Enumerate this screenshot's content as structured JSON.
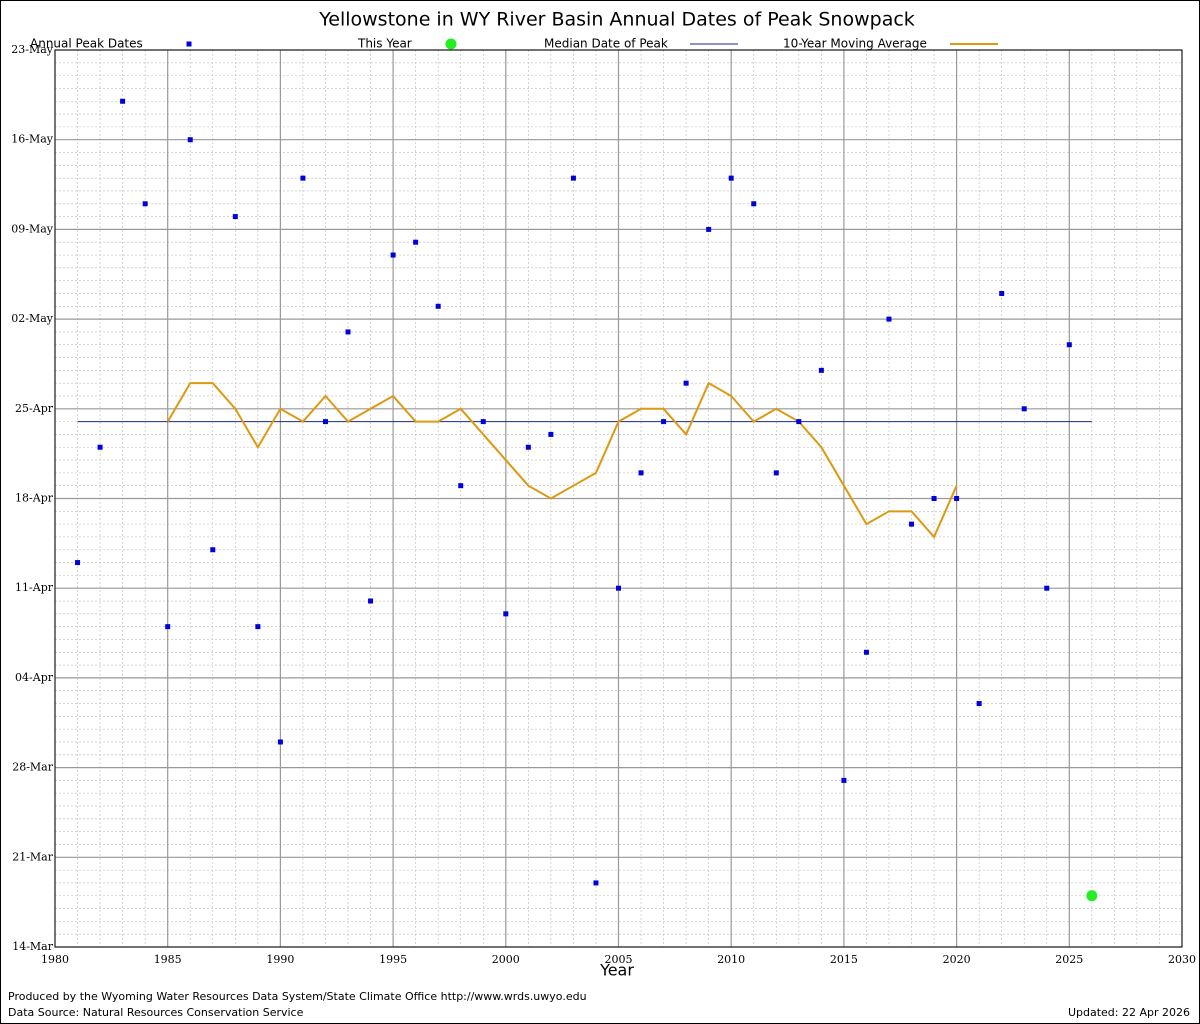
{
  "chart_data": {
    "type": "scatter",
    "title": "Yellowstone in WY River Basin Annual Dates of Peak Snowpack",
    "x_label": "Year",
    "footer_left": [
      "Produced by the Wyoming Water Resources Data System/State Climate Office http://www.wrds.uwyo.edu",
      "Data Source: Natural Resources Conservation Service"
    ],
    "footer_right": "Updated: 22 Apr 2026",
    "xlim": [
      1980,
      2030
    ],
    "xticks": [
      1980,
      1985,
      1990,
      1995,
      2000,
      2005,
      2010,
      2015,
      2020,
      2025,
      2030
    ],
    "ylim": [
      73,
      143
    ],
    "yticks": [
      {
        "value": 73,
        "label": "14-Mar"
      },
      {
        "value": 80,
        "label": "21-Mar"
      },
      {
        "value": 87,
        "label": "28-Mar"
      },
      {
        "value": 94,
        "label": "04-Apr"
      },
      {
        "value": 101,
        "label": "11-Apr"
      },
      {
        "value": 108,
        "label": "18-Apr"
      },
      {
        "value": 115,
        "label": "25-Apr"
      },
      {
        "value": 122,
        "label": "02-May"
      },
      {
        "value": 129,
        "label": "09-May"
      },
      {
        "value": 136,
        "label": "16-May"
      },
      {
        "value": 143,
        "label": "23-May"
      }
    ],
    "grid": true,
    "minor_grid": true,
    "series": [
      {
        "name": "Annual Peak Dates",
        "style": "marker",
        "color": "#0000dd",
        "x": [
          1981,
          1982,
          1983,
          1984,
          1985,
          1986,
          1987,
          1988,
          1989,
          1990,
          1991,
          1992,
          1993,
          1994,
          1995,
          1996,
          1997,
          1998,
          1999,
          2000,
          2001,
          2002,
          2003,
          2004,
          2005,
          2006,
          2007,
          2008,
          2009,
          2010,
          2011,
          2012,
          2013,
          2014,
          2015,
          2016,
          2017,
          2018,
          2019,
          2020,
          2021,
          2022,
          2023,
          2024,
          2025
        ],
        "values": [
          103,
          112,
          139,
          131,
          98,
          136,
          104,
          130,
          98,
          89,
          133,
          114,
          121,
          100,
          127,
          128,
          123,
          109,
          114,
          99,
          112,
          113,
          133,
          78,
          101,
          110,
          114,
          117,
          129,
          133,
          131,
          110,
          114,
          118,
          86,
          96,
          122,
          106,
          108,
          108,
          92,
          124,
          115,
          101,
          120
        ]
      },
      {
        "name": "This Year",
        "style": "big-marker",
        "color": "#22ee22",
        "x": [
          2026
        ],
        "values": [
          77
        ]
      },
      {
        "name": "Median Date of Peak",
        "style": "line",
        "color": "#1a2a8a",
        "x": [
          1981,
          2026
        ],
        "values": [
          114,
          114
        ]
      },
      {
        "name": "10-Year Moving Average",
        "style": "line",
        "color": "#dd9911",
        "x": [
          1985,
          1986,
          1987,
          1988,
          1989,
          1990,
          1991,
          1992,
          1993,
          1994,
          1995,
          1996,
          1997,
          1998,
          1999,
          2000,
          2001,
          2002,
          2003,
          2004,
          2005,
          2006,
          2007,
          2008,
          2009,
          2010,
          2011,
          2012,
          2013,
          2014,
          2015,
          2016,
          2017,
          2018,
          2019,
          2020
        ],
        "values": [
          114,
          117,
          117,
          115,
          112,
          115,
          114,
          116,
          114,
          115,
          116,
          114,
          114,
          115,
          113,
          111,
          109,
          108,
          109,
          110,
          114,
          115,
          115,
          113,
          117,
          116,
          114,
          115,
          114,
          112,
          109,
          106,
          107,
          107,
          105,
          109
        ]
      }
    ]
  }
}
